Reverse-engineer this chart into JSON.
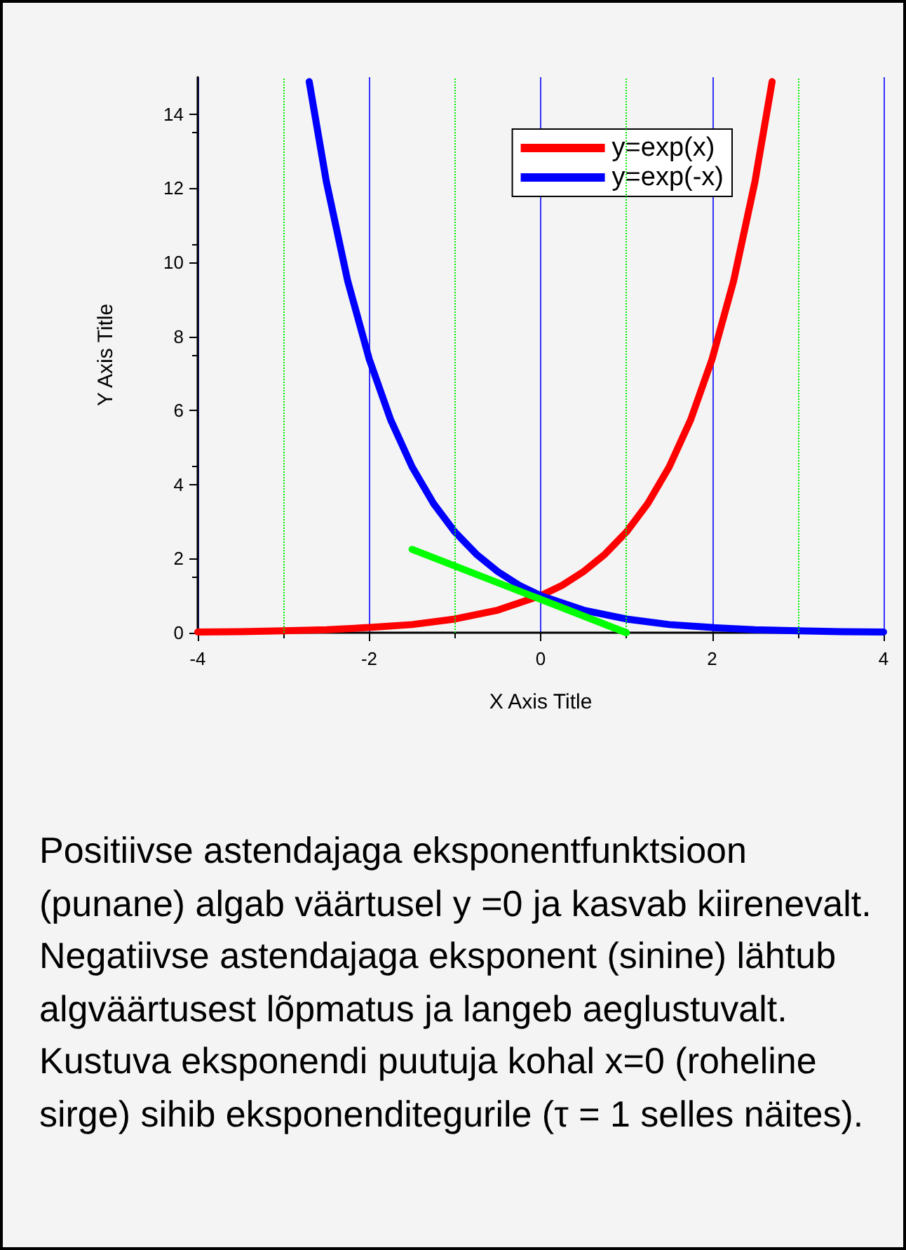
{
  "chart_data": {
    "type": "line",
    "xlabel": "X Axis Title",
    "ylabel": "Y Axis Title",
    "xlim": [
      -4,
      4
    ],
    "xticks": [
      -4,
      -2,
      0,
      2,
      4
    ],
    "ylim": [
      0,
      15
    ],
    "yticks": [
      0,
      2,
      4,
      6,
      8,
      10,
      12,
      14
    ],
    "grid": "x",
    "legend": "top right",
    "marker": "none",
    "line_style": "solid",
    "series": [
      {
        "name": "y=exp(x)",
        "color": "#ff0000",
        "x": [
          -4,
          -3.5,
          -3,
          -2.5,
          -2,
          -1.5,
          -1,
          -0.5,
          0,
          0.25,
          0.5,
          0.75,
          1,
          1.25,
          1.5,
          1.75,
          2,
          2.25,
          2.5,
          2.7
        ],
        "values": [
          0.02,
          0.03,
          0.05,
          0.08,
          0.14,
          0.22,
          0.37,
          0.61,
          1,
          1.28,
          1.65,
          2.12,
          2.72,
          3.49,
          4.48,
          5.75,
          7.39,
          9.49,
          12.18,
          14.88
        ]
      },
      {
        "name": "y=exp(-x)",
        "color": "#0000ff",
        "x": [
          -2.7,
          -2.5,
          -2.25,
          -2,
          -1.75,
          -1.5,
          -1.25,
          -1,
          -0.75,
          -0.5,
          -0.25,
          0,
          0.5,
          1,
          1.5,
          2,
          2.5,
          3,
          3.5,
          4
        ],
        "values": [
          14.88,
          12.18,
          9.49,
          7.39,
          5.75,
          4.48,
          3.49,
          2.72,
          2.12,
          1.65,
          1.28,
          1,
          0.61,
          0.37,
          0.22,
          0.14,
          0.08,
          0.05,
          0.03,
          0.02
        ]
      },
      {
        "color": "#00ff00",
        "x": [
          -1.5,
          1
        ],
        "values": [
          2.25,
          0
        ]
      }
    ],
    "ref_lines": [
      {
        "axis": "x",
        "value": -3,
        "color": "#00ee00",
        "line_style": "dotted"
      },
      {
        "axis": "x",
        "value": -1,
        "color": "#00ee00",
        "line_style": "dotted"
      },
      {
        "axis": "x",
        "value": 1,
        "color": "#00ee00",
        "line_style": "dotted"
      },
      {
        "axis": "x",
        "value": 3,
        "color": "#00ee00",
        "line_style": "dotted"
      }
    ],
    "annotations": [
      "Positiivse astendajaga eksponentfunktsioon (punane) algab väärtusel y =0 ja kasvab kiirenevalt. Negatiivse astendajaga eksponent (sinine) lähtub algväärtusest lõpmatus ja langeb aeglustuvalt. Kustuva eksponendi puutuja kohal x=0 (roheline sirge) sihib eksponenditegurile (τ = 1 selles näites)."
    ]
  }
}
